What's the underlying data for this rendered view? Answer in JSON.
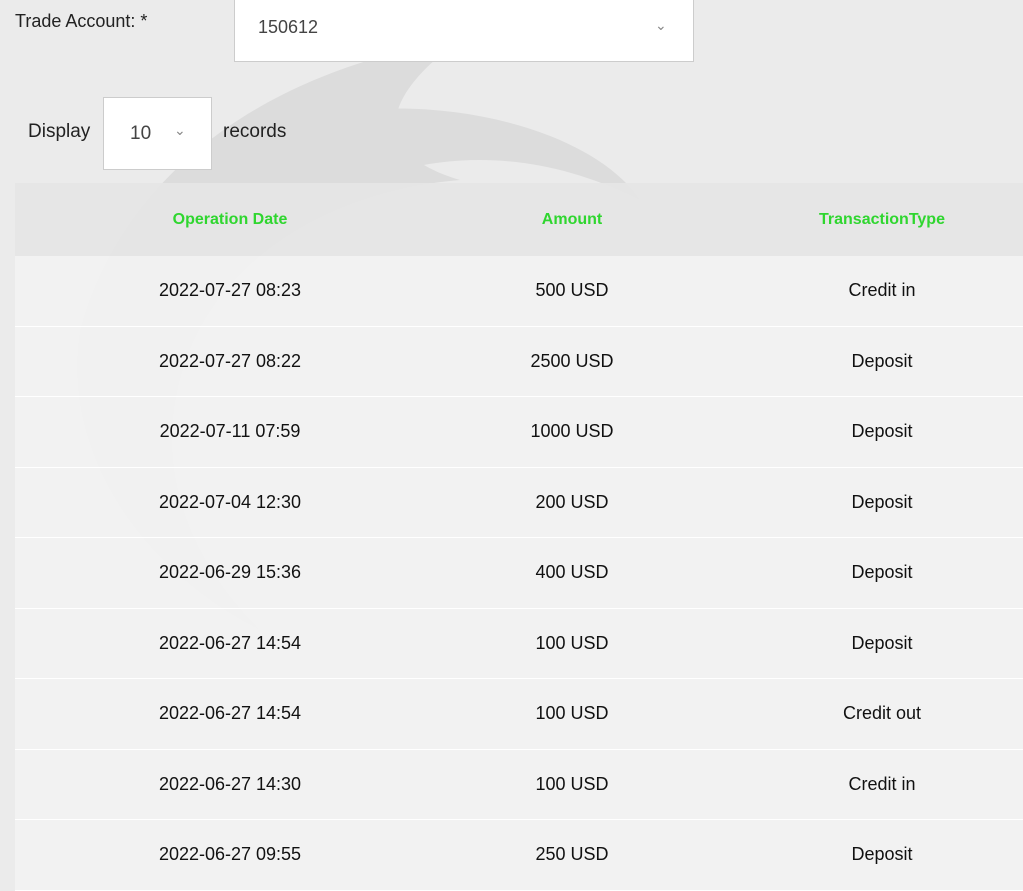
{
  "form": {
    "trade_account_label": "Trade Account: *",
    "trade_account_value": "150612",
    "display_label": "Display",
    "display_value": "10",
    "records_label": "records"
  },
  "colors": {
    "header_text": "#2fd62f",
    "background": "#ebebeb"
  },
  "table": {
    "headers": [
      "Operation Date",
      "Amount",
      "TransactionType"
    ],
    "rows": [
      [
        "2022-07-27 08:23",
        "500 USD",
        "Credit in"
      ],
      [
        "2022-07-27 08:22",
        "2500 USD",
        "Deposit"
      ],
      [
        "2022-07-11 07:59",
        "1000 USD",
        "Deposit"
      ],
      [
        "2022-07-04 12:30",
        "200 USD",
        "Deposit"
      ],
      [
        "2022-06-29 15:36",
        "400 USD",
        "Deposit"
      ],
      [
        "2022-06-27 14:54",
        "100 USD",
        "Deposit"
      ],
      [
        "2022-06-27 14:54",
        "100 USD",
        "Credit out"
      ],
      [
        "2022-06-27 14:30",
        "100 USD",
        "Credit in"
      ],
      [
        "2022-06-27 09:55",
        "250 USD",
        "Deposit"
      ]
    ]
  }
}
